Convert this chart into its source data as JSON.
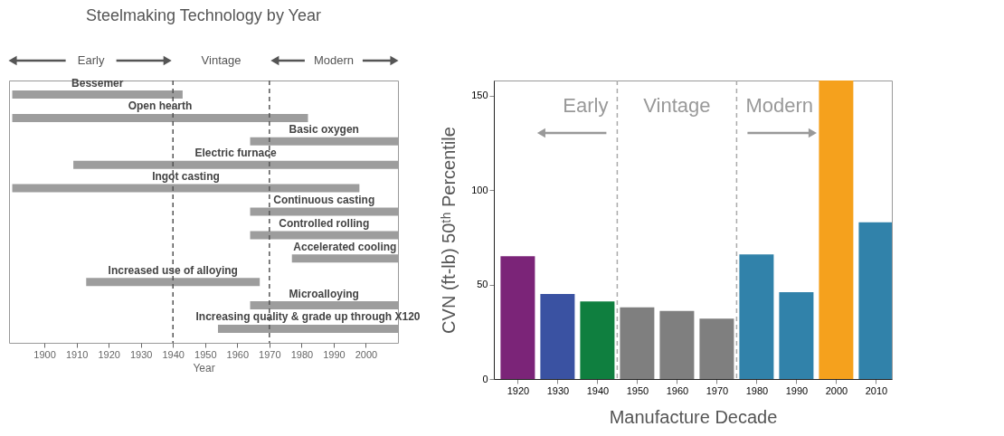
{
  "chart_data": [
    {
      "type": "bar",
      "orientation": "horizontal",
      "title": "Steelmaking Technology by Year",
      "xlabel": "Year",
      "categories": [
        "Bessemer",
        "Open hearth",
        "Basic oxygen",
        "Electric furnace",
        "Ingot casting",
        "Continuous casting",
        "Controlled rolling",
        "Accelerated cooling",
        "Increased use of alloying",
        "Microalloying",
        "Increasing quality & grade up through X120"
      ],
      "base": [
        1890,
        1890,
        1964,
        1909,
        1890,
        1964,
        1964,
        1977,
        1913,
        1964,
        1954
      ],
      "values": [
        53,
        92,
        46,
        101,
        108,
        46,
        46,
        33,
        54,
        46,
        56
      ],
      "color": "#8c8c8c",
      "xlim": [
        1889,
        2010
      ],
      "xticks": [
        1900,
        1910,
        1920,
        1930,
        1940,
        1950,
        1960,
        1970,
        1980,
        1990,
        2000
      ],
      "grid": false,
      "ref_lines": [
        {
          "axis": "x",
          "value": 1940,
          "line_style": "dashed",
          "color": "#555555"
        },
        {
          "axis": "x",
          "value": 1970,
          "line_style": "dashed",
          "color": "#555555"
        }
      ],
      "annotations": [
        "Early",
        "Vintage",
        "Modern"
      ]
    },
    {
      "type": "bar",
      "xlabel": "Manufacture Decade",
      "ylabel": "CVN (ft-lb) 50ᵗʰ Percentile",
      "x": [
        1920,
        1930,
        1940,
        1950,
        1960,
        1970,
        1980,
        1990,
        2000,
        2010
      ],
      "values": [
        65,
        45,
        41,
        38,
        36,
        32,
        66,
        46,
        158,
        83
      ],
      "colors": [
        "#7b2478",
        "#3a52a2",
        "#0f7f3f",
        "#7f7f7f",
        "#7f7f7f",
        "#7f7f7f",
        "#3182aa",
        "#3182aa",
        "#f5a11d",
        "#3182aa"
      ],
      "xlim": [
        1914,
        2014
      ],
      "xticks": [
        1920,
        1930,
        1940,
        1950,
        1960,
        1970,
        1980,
        1990,
        2000,
        2010
      ],
      "ylim": [
        0,
        158
      ],
      "yticks": [
        0,
        50,
        100,
        150
      ],
      "grid": false,
      "ref_lines": [
        {
          "axis": "x",
          "value": 1945,
          "line_style": "dashed",
          "color": "#aaaaaa"
        },
        {
          "axis": "x",
          "value": 1975,
          "line_style": "dashed",
          "color": "#aaaaaa"
        }
      ],
      "annotations": [
        "Early",
        "Vintage",
        "Modern"
      ]
    }
  ]
}
